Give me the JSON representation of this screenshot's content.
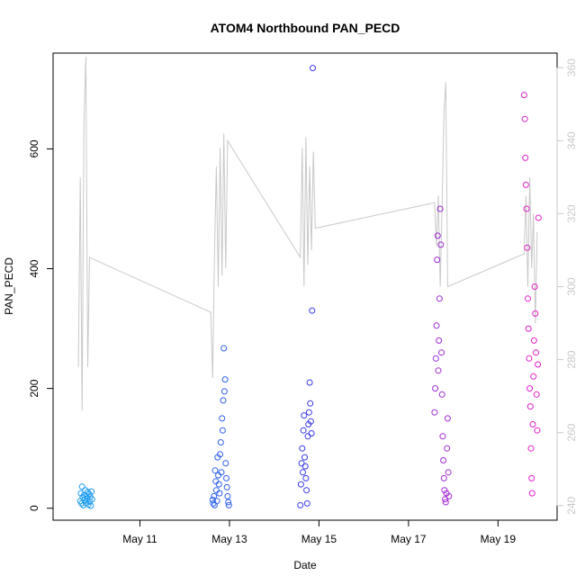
{
  "chart_data": {
    "type": "scatter",
    "title": "ATOM4 Northbound PAN_PECD",
    "xlabel": "Date",
    "ylabel": "PAN_PECD",
    "x_ticks": [
      "May 11",
      "May 13",
      "May 15",
      "May 17",
      "May 19"
    ],
    "y_ticks": [
      "0",
      "200",
      "400",
      "600"
    ],
    "y_ylim": [
      -20,
      760
    ],
    "y2_ticks": [
      "240",
      "260",
      "280",
      "300",
      "320",
      "340",
      "360"
    ],
    "y2_ylim": [
      236,
      364
    ],
    "colors": {
      "point_start": "#1a9ef0",
      "point_mid": "#3a3ae6",
      "point_end": "#e81ec8",
      "line": "#c8c8c8",
      "right_axis": "#c8c8c8"
    },
    "series": [
      {
        "type": "scatter",
        "axis": "left",
        "points": [
          [
            "May 09 16:00",
            12
          ],
          [
            "May 09 16:20",
            25
          ],
          [
            "May 09 16:40",
            8
          ],
          [
            "May 09 17:00",
            36
          ],
          [
            "May 09 17:20",
            18
          ],
          [
            "May 09 17:40",
            5
          ],
          [
            "May 09 18:00",
            22
          ],
          [
            "May 09 18:20",
            14
          ],
          [
            "May 09 18:40",
            30
          ],
          [
            "May 09 19:00",
            9
          ],
          [
            "May 09 19:20",
            20
          ],
          [
            "May 09 19:40",
            16
          ],
          [
            "May 09 20:00",
            27
          ],
          [
            "May 09 20:20",
            6
          ],
          [
            "May 09 20:40",
            24
          ],
          [
            "May 09 21:00",
            11
          ],
          [
            "May 09 21:20",
            19
          ],
          [
            "May 09 21:40",
            4
          ],
          [
            "May 09 22:00",
            28
          ],
          [
            "May 09 22:20",
            15
          ],
          [
            "May 12 15:00",
            14
          ],
          [
            "May 12 15:20",
            8
          ],
          [
            "May 12 15:40",
            20
          ],
          [
            "May 12 16:00",
            5
          ],
          [
            "May 12 16:20",
            63
          ],
          [
            "May 12 16:40",
            45
          ],
          [
            "May 12 17:00",
            30
          ],
          [
            "May 12 17:20",
            12
          ],
          [
            "May 12 17:40",
            85
          ],
          [
            "May 12 18:00",
            55
          ],
          [
            "May 12 18:20",
            40
          ],
          [
            "May 12 18:40",
            25
          ],
          [
            "May 12 19:00",
            90
          ],
          [
            "May 12 19:20",
            110
          ],
          [
            "May 12 19:40",
            60
          ],
          [
            "May 12 20:00",
            150
          ],
          [
            "May 12 20:20",
            130
          ],
          [
            "May 12 20:40",
            180
          ],
          [
            "May 12 21:00",
            267
          ],
          [
            "May 12 21:20",
            195
          ],
          [
            "May 12 21:40",
            215
          ],
          [
            "May 12 22:00",
            75
          ],
          [
            "May 12 22:20",
            50
          ],
          [
            "May 12 22:40",
            35
          ],
          [
            "May 12 23:00",
            20
          ],
          [
            "May 12 23:20",
            10
          ],
          [
            "May 12 23:40",
            5
          ],
          [
            "May 14 14:00",
            5
          ],
          [
            "May 14 14:20",
            40
          ],
          [
            "May 14 14:40",
            75
          ],
          [
            "May 14 15:00",
            100
          ],
          [
            "May 14 15:20",
            60
          ],
          [
            "May 14 15:40",
            130
          ],
          [
            "May 14 16:00",
            155
          ],
          [
            "May 14 16:20",
            85
          ],
          [
            "May 14 16:40",
            70
          ],
          [
            "May 14 17:00",
            50
          ],
          [
            "May 14 17:20",
            30
          ],
          [
            "May 14 17:40",
            8
          ],
          [
            "May 14 18:00",
            120
          ],
          [
            "May 14 18:20",
            140
          ],
          [
            "May 14 18:40",
            160
          ],
          [
            "May 14 19:00",
            210
          ],
          [
            "May 14 19:20",
            175
          ],
          [
            "May 14 19:40",
            145
          ],
          [
            "May 14 20:00",
            125
          ],
          [
            "May 14 20:20",
            330
          ],
          [
            "May 14 20:40",
            735
          ],
          [
            "May 17 14:00",
            160
          ],
          [
            "May 17 14:20",
            200
          ],
          [
            "May 17 14:40",
            250
          ],
          [
            "May 17 15:00",
            305
          ],
          [
            "May 17 15:20",
            415
          ],
          [
            "May 17 15:40",
            455
          ],
          [
            "May 17 16:00",
            230
          ],
          [
            "May 17 16:20",
            280
          ],
          [
            "May 17 16:40",
            350
          ],
          [
            "May 17 17:00",
            500
          ],
          [
            "May 17 17:20",
            440
          ],
          [
            "May 17 17:40",
            260
          ],
          [
            "May 17 18:00",
            190
          ],
          [
            "May 17 18:20",
            120
          ],
          [
            "May 17 18:40",
            80
          ],
          [
            "May 17 19:00",
            50
          ],
          [
            "May 17 19:20",
            30
          ],
          [
            "May 17 19:40",
            15
          ],
          [
            "May 17 20:00",
            10
          ],
          [
            "May 17 20:20",
            25
          ],
          [
            "May 17 20:40",
            100
          ],
          [
            "May 17 21:00",
            150
          ],
          [
            "May 17 21:20",
            60
          ],
          [
            "May 17 21:40",
            20
          ],
          [
            "May 19 14:00",
            690
          ],
          [
            "May 19 14:20",
            650
          ],
          [
            "May 19 14:40",
            585
          ],
          [
            "May 19 15:00",
            540
          ],
          [
            "May 19 15:20",
            500
          ],
          [
            "May 19 15:40",
            435
          ],
          [
            "May 19 16:00",
            350
          ],
          [
            "May 19 16:20",
            300
          ],
          [
            "May 19 16:40",
            250
          ],
          [
            "May 19 17:00",
            200
          ],
          [
            "May 19 17:20",
            170
          ],
          [
            "May 19 17:40",
            100
          ],
          [
            "May 19 18:00",
            50
          ],
          [
            "May 19 18:20",
            25
          ],
          [
            "May 19 18:40",
            140
          ],
          [
            "May 19 19:00",
            220
          ],
          [
            "May 19 19:20",
            280
          ],
          [
            "May 19 19:40",
            370
          ],
          [
            "May 19 20:00",
            325
          ],
          [
            "May 19 20:20",
            260
          ],
          [
            "May 19 20:40",
            190
          ],
          [
            "May 19 21:00",
            130
          ],
          [
            "May 19 21:20",
            240
          ],
          [
            "May 19 21:40",
            485
          ]
        ]
      },
      {
        "type": "line",
        "axis": "right",
        "points": [
          [
            "May 09 15:00",
            278
          ],
          [
            "May 09 16:00",
            330
          ],
          [
            "May 09 17:00",
            266
          ],
          [
            "May 09 18:00",
            345
          ],
          [
            "May 09 19:00",
            363
          ],
          [
            "May 09 20:00",
            278
          ],
          [
            "May 09 21:00",
            308
          ],
          [
            "May 12 14:00",
            293
          ],
          [
            "May 12 15:00",
            275
          ],
          [
            "May 12 16:00",
            310
          ],
          [
            "May 12 17:00",
            333
          ],
          [
            "May 12 18:00",
            300
          ],
          [
            "May 12 19:00",
            338
          ],
          [
            "May 12 20:00",
            303
          ],
          [
            "May 12 21:00",
            342
          ],
          [
            "May 12 22:00",
            305
          ],
          [
            "May 12 23:00",
            340
          ],
          [
            "May 14 14:00",
            308
          ],
          [
            "May 14 15:00",
            338
          ],
          [
            "May 14 16:00",
            300
          ],
          [
            "May 14 17:00",
            341
          ],
          [
            "May 14 18:00",
            306
          ],
          [
            "May 14 19:00",
            333
          ],
          [
            "May 14 20:00",
            310
          ],
          [
            "May 14 21:00",
            337
          ],
          [
            "May 14 22:00",
            316
          ],
          [
            "May 17 14:00",
            323
          ],
          [
            "May 17 15:00",
            311
          ],
          [
            "May 17 16:00",
            325
          ],
          [
            "May 17 17:00",
            300
          ],
          [
            "May 17 18:00",
            322
          ],
          [
            "May 17 19:00",
            348
          ],
          [
            "May 17 20:00",
            356
          ],
          [
            "May 17 21:00",
            300
          ],
          [
            "May 19 14:00",
            309
          ],
          [
            "May 19 15:00",
            325
          ],
          [
            "May 19 16:00",
            300
          ],
          [
            "May 19 17:00",
            330
          ],
          [
            "May 19 18:00",
            305
          ],
          [
            "May 19 19:00",
            320
          ],
          [
            "May 19 20:00",
            290
          ],
          [
            "May 19 21:00",
            315
          ]
        ]
      }
    ]
  }
}
